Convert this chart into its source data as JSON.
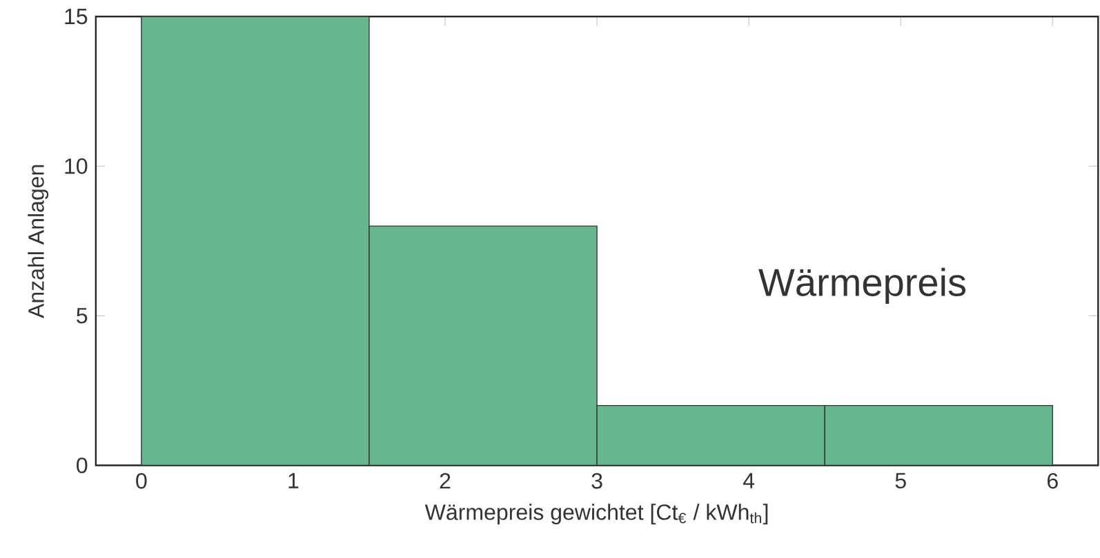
{
  "chart_data": {
    "type": "histogram",
    "xlabel": "Wärmepreis gewichtet [Ct$_{€}$ / kWh$_{th}$]",
    "ylabel": "Anzahl Anlagen",
    "bins": [
      0,
      1.5,
      3,
      4.5,
      6
    ],
    "values": [
      15,
      8,
      2,
      2
    ],
    "color": "#66b68e",
    "xlim": [
      -0.3,
      6.3
    ],
    "xticks": [
      0,
      1,
      2,
      3,
      4,
      5,
      6
    ],
    "ylim": [
      0,
      15
    ],
    "yticks": [
      0,
      5,
      10,
      15
    ],
    "annotations": [
      "Wärmepreis"
    ]
  }
}
